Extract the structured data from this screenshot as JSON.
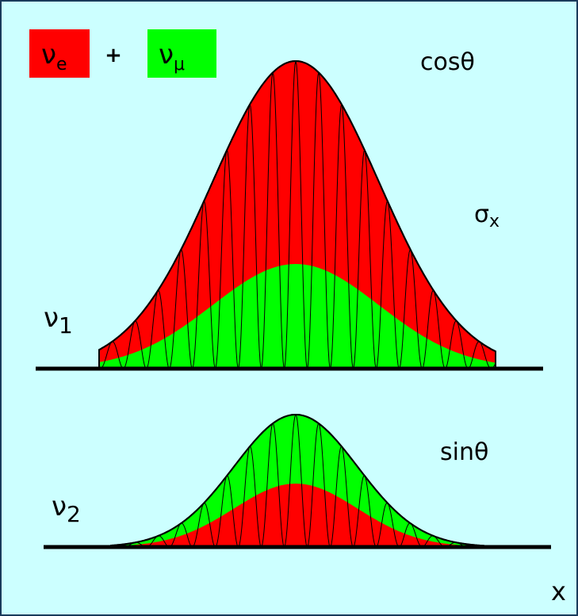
{
  "legend": {
    "operator": "+",
    "items": [
      {
        "symbol": "ν",
        "subscript": "e"
      },
      {
        "symbol": "ν",
        "subscript": "μ"
      }
    ]
  },
  "labels": {
    "top_mixing": "cosθ",
    "width": {
      "symbol": "σ",
      "subscript": "x"
    },
    "nu1": {
      "symbol": "ν",
      "subscript": "1"
    },
    "bottom_mixing": "sinθ",
    "nu2": {
      "symbol": "ν",
      "subscript": "2"
    },
    "axis": "x"
  }
}
